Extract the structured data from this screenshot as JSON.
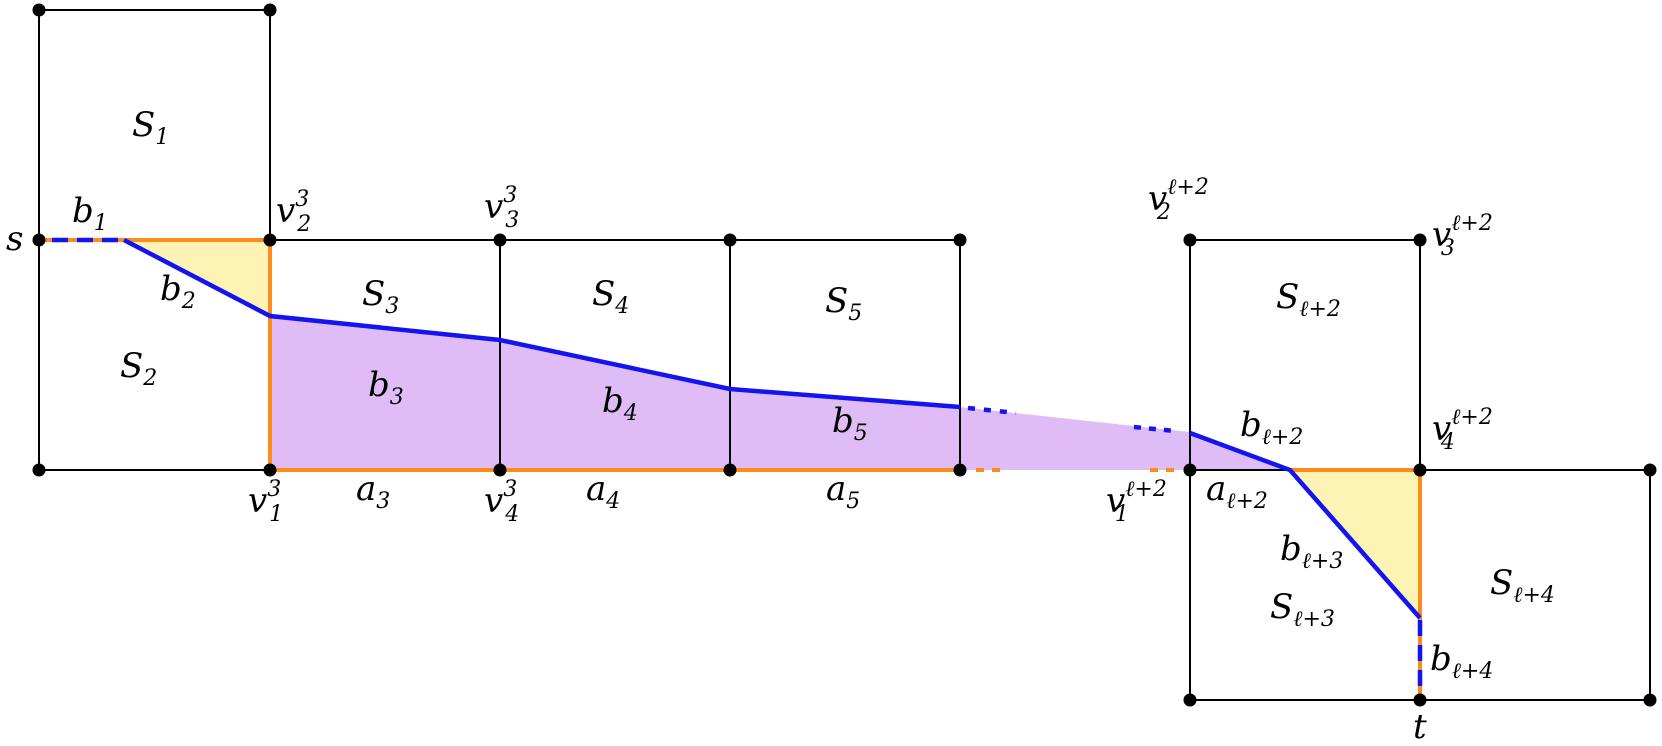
{
  "colors": {
    "edge": "#000000",
    "path_orange": "#ff8c1a",
    "path_blue": "#1414f0",
    "region_yellow": "#fdf3b4",
    "region_purple": "#e0bcf6"
  },
  "squares": {
    "s1": {
      "name": "S",
      "sub": "1"
    },
    "s2": {
      "name": "S",
      "sub": "2"
    },
    "s3": {
      "name": "S",
      "sub": "3"
    },
    "s4": {
      "name": "S",
      "sub": "4"
    },
    "s5": {
      "name": "S",
      "sub": "5"
    },
    "sl2": {
      "name": "S",
      "sub": "ℓ+2"
    },
    "sl3": {
      "name": "S",
      "sub": "ℓ+3"
    },
    "sl4": {
      "name": "S",
      "sub": "ℓ+4"
    }
  },
  "terminals": {
    "s": "s",
    "t": "t"
  },
  "vertices": {
    "v1_3": {
      "name": "v",
      "sub": "1",
      "sup": "3"
    },
    "v2_3": {
      "name": "v",
      "sub": "2",
      "sup": "3"
    },
    "v3_3": {
      "name": "v",
      "sub": "3",
      "sup": "3"
    },
    "v4_3": {
      "name": "v",
      "sub": "4",
      "sup": "3"
    },
    "v1_l2": {
      "name": "v",
      "sub": "1",
      "sup": "ℓ+2"
    },
    "v2_l2": {
      "name": "v",
      "sub": "2",
      "sup": "ℓ+2"
    },
    "v3_l2": {
      "name": "v",
      "sub": "3",
      "sup": "ℓ+2"
    },
    "v4_l2": {
      "name": "v",
      "sub": "4",
      "sup": "ℓ+2"
    }
  },
  "segments_b": {
    "b1": {
      "name": "b",
      "sub": "1"
    },
    "b2": {
      "name": "b",
      "sub": "2"
    },
    "b3": {
      "name": "b",
      "sub": "3"
    },
    "b4": {
      "name": "b",
      "sub": "4"
    },
    "b5": {
      "name": "b",
      "sub": "5"
    },
    "bl2": {
      "name": "b",
      "sub": "ℓ+2"
    },
    "bl3": {
      "name": "b",
      "sub": "ℓ+3"
    },
    "bl4": {
      "name": "b",
      "sub": "ℓ+4"
    }
  },
  "segments_a": {
    "a3": {
      "name": "a",
      "sub": "3"
    },
    "a4": {
      "name": "a",
      "sub": "4"
    },
    "a5": {
      "name": "a",
      "sub": "5"
    },
    "al2": {
      "name": "a",
      "sub": "ℓ+2"
    }
  }
}
